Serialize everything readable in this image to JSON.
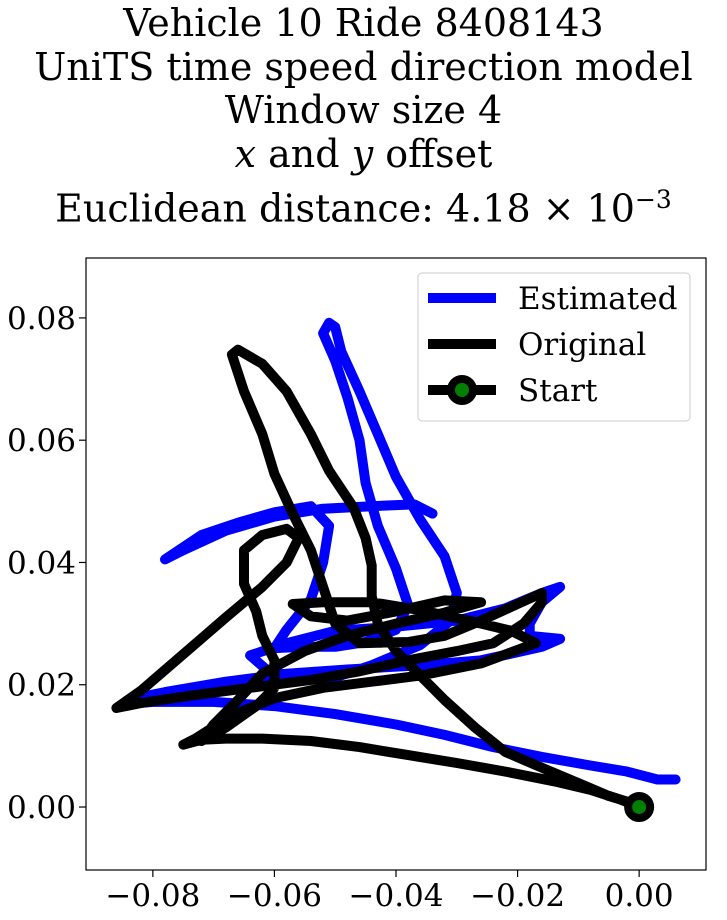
{
  "chart_data": {
    "type": "line",
    "title_lines": [
      "Vehicle 10 Ride 8408143",
      "UniTS time speed direction model",
      "Window size 4",
      "x and y offset",
      "Euclidean distance: 4.18 × 10",
      "−3"
    ],
    "title_italic": {
      "x": "x",
      "and": " and ",
      "y": "y",
      "offset": " offset"
    },
    "xlim": [
      -0.091,
      0.011
    ],
    "ylim": [
      -0.0103,
      0.0898
    ],
    "x_ticks": [
      -0.08,
      -0.06,
      -0.04,
      -0.02,
      0.0
    ],
    "x_tick_labels": [
      "−0.08",
      "−0.06",
      "−0.04",
      "−0.02",
      "0.00"
    ],
    "y_ticks": [
      0.0,
      0.02,
      0.04,
      0.06,
      0.08
    ],
    "y_tick_labels": [
      "0.00",
      "0.02",
      "0.04",
      "0.06",
      "0.08"
    ],
    "legend_position": "top-right",
    "grid": false,
    "series": [
      {
        "name": "Estimated",
        "color": "#0000ff",
        "points": [
          [
            0.006,
            0.0045
          ],
          [
            0.003,
            0.0045
          ],
          [
            -0.002,
            0.0058
          ],
          [
            -0.008,
            0.0068
          ],
          [
            -0.016,
            0.0082
          ],
          [
            -0.024,
            0.0098
          ],
          [
            -0.032,
            0.0118
          ],
          [
            -0.04,
            0.0135
          ],
          [
            -0.05,
            0.0152
          ],
          [
            -0.06,
            0.0165
          ],
          [
            -0.07,
            0.0172
          ],
          [
            -0.08,
            0.0172
          ],
          [
            -0.085,
            0.0168
          ],
          [
            -0.084,
            0.0176
          ],
          [
            -0.078,
            0.0188
          ],
          [
            -0.068,
            0.0205
          ],
          [
            -0.058,
            0.0218
          ],
          [
            -0.048,
            0.0225
          ],
          [
            -0.036,
            0.0232
          ],
          [
            -0.026,
            0.024
          ],
          [
            -0.016,
            0.0262
          ],
          [
            -0.013,
            0.0275
          ],
          [
            -0.018,
            0.028
          ],
          [
            -0.018,
            0.03
          ],
          [
            -0.016,
            0.0335
          ],
          [
            -0.013,
            0.036
          ],
          [
            -0.016,
            0.035
          ],
          [
            -0.022,
            0.0325
          ],
          [
            -0.03,
            0.0305
          ],
          [
            -0.04,
            0.0295
          ],
          [
            -0.05,
            0.0288
          ],
          [
            -0.058,
            0.0268
          ],
          [
            -0.064,
            0.0248
          ],
          [
            -0.061,
            0.0222
          ],
          [
            -0.056,
            0.0212
          ],
          [
            -0.05,
            0.0212
          ],
          [
            -0.044,
            0.0232
          ],
          [
            -0.036,
            0.0265
          ],
          [
            -0.031,
            0.0305
          ],
          [
            -0.03,
            0.035
          ],
          [
            -0.032,
            0.041
          ],
          [
            -0.036,
            0.047
          ],
          [
            -0.04,
            0.054
          ],
          [
            -0.043,
            0.061
          ],
          [
            -0.046,
            0.068
          ],
          [
            -0.049,
            0.0745
          ],
          [
            -0.05,
            0.0785
          ],
          [
            -0.051,
            0.0792
          ],
          [
            -0.052,
            0.0775
          ],
          [
            -0.05,
            0.073
          ],
          [
            -0.048,
            0.067
          ],
          [
            -0.046,
            0.06
          ],
          [
            -0.045,
            0.053
          ],
          [
            -0.043,
            0.046
          ],
          [
            -0.04,
            0.039
          ],
          [
            -0.038,
            0.033
          ],
          [
            -0.04,
            0.029
          ],
          [
            -0.045,
            0.027
          ],
          [
            -0.05,
            0.0262
          ],
          [
            -0.055,
            0.0262
          ],
          [
            -0.06,
            0.026
          ],
          [
            -0.058,
            0.029
          ],
          [
            -0.054,
            0.034
          ],
          [
            -0.052,
            0.04
          ],
          [
            -0.051,
            0.046
          ],
          [
            -0.054,
            0.0492
          ],
          [
            -0.06,
            0.0482
          ],
          [
            -0.066,
            0.0465
          ],
          [
            -0.072,
            0.0445
          ],
          [
            -0.078,
            0.0405
          ],
          [
            -0.075,
            0.042
          ],
          [
            -0.068,
            0.0452
          ],
          [
            -0.06,
            0.0475
          ],
          [
            -0.052,
            0.0488
          ],
          [
            -0.044,
            0.0492
          ],
          [
            -0.037,
            0.0495
          ],
          [
            -0.034,
            0.048
          ]
        ]
      },
      {
        "name": "Original",
        "color": "#000000",
        "points": [
          [
            0.0,
            0.0
          ],
          [
            -0.003,
            0.0012
          ],
          [
            -0.008,
            0.0028
          ],
          [
            -0.014,
            0.0042
          ],
          [
            -0.022,
            0.0058
          ],
          [
            -0.03,
            0.0072
          ],
          [
            -0.038,
            0.0085
          ],
          [
            -0.046,
            0.0098
          ],
          [
            -0.054,
            0.0108
          ],
          [
            -0.062,
            0.0112
          ],
          [
            -0.068,
            0.0112
          ],
          [
            -0.072,
            0.011
          ],
          [
            -0.075,
            0.0102
          ],
          [
            -0.073,
            0.0112
          ],
          [
            -0.067,
            0.015
          ],
          [
            -0.06,
            0.0178
          ],
          [
            -0.052,
            0.0195
          ],
          [
            -0.044,
            0.0205
          ],
          [
            -0.036,
            0.0215
          ],
          [
            -0.026,
            0.0235
          ],
          [
            -0.017,
            0.0268
          ],
          [
            -0.021,
            0.0288
          ],
          [
            -0.028,
            0.0305
          ],
          [
            -0.036,
            0.0322
          ],
          [
            -0.044,
            0.0335
          ],
          [
            -0.052,
            0.0335
          ],
          [
            -0.057,
            0.0332
          ],
          [
            -0.054,
            0.0312
          ],
          [
            -0.048,
            0.0305
          ],
          [
            -0.04,
            0.032
          ],
          [
            -0.032,
            0.0338
          ],
          [
            -0.026,
            0.0335
          ],
          [
            -0.032,
            0.0318
          ],
          [
            -0.04,
            0.03
          ],
          [
            -0.048,
            0.028
          ],
          [
            -0.055,
            0.0255
          ],
          [
            -0.062,
            0.0218
          ],
          [
            -0.066,
            0.0175
          ],
          [
            -0.07,
            0.0135
          ],
          [
            -0.072,
            0.0108
          ],
          [
            -0.068,
            0.013
          ],
          [
            -0.063,
            0.0165
          ],
          [
            -0.06,
            0.0195
          ],
          [
            -0.06,
            0.024
          ],
          [
            -0.062,
            0.028
          ],
          [
            -0.063,
            0.032
          ],
          [
            -0.065,
            0.0365
          ],
          [
            -0.065,
            0.042
          ],
          [
            -0.062,
            0.0445
          ],
          [
            -0.058,
            0.0455
          ],
          [
            -0.056,
            0.044
          ],
          [
            -0.058,
            0.04
          ],
          [
            -0.062,
            0.036
          ],
          [
            -0.068,
            0.031
          ],
          [
            -0.075,
            0.025
          ],
          [
            -0.082,
            0.019
          ],
          [
            -0.086,
            0.0162
          ],
          [
            -0.082,
            0.017
          ],
          [
            -0.074,
            0.0182
          ],
          [
            -0.064,
            0.0195
          ],
          [
            -0.054,
            0.0208
          ],
          [
            -0.046,
            0.0222
          ],
          [
            -0.038,
            0.024
          ],
          [
            -0.03,
            0.0255
          ],
          [
            -0.024,
            0.0268
          ],
          [
            -0.019,
            0.03
          ],
          [
            -0.016,
            0.0335
          ],
          [
            -0.016,
            0.035
          ],
          [
            -0.02,
            0.0332
          ],
          [
            -0.026,
            0.0305
          ],
          [
            -0.032,
            0.028
          ],
          [
            -0.038,
            0.027
          ],
          [
            -0.046,
            0.0268
          ],
          [
            -0.05,
            0.03
          ],
          [
            -0.052,
            0.036
          ],
          [
            -0.054,
            0.042
          ],
          [
            -0.057,
            0.048
          ],
          [
            -0.06,
            0.0545
          ],
          [
            -0.062,
            0.061
          ],
          [
            -0.065,
            0.068
          ],
          [
            -0.067,
            0.074
          ],
          [
            -0.066,
            0.0748
          ],
          [
            -0.062,
            0.0725
          ],
          [
            -0.058,
            0.068
          ],
          [
            -0.054,
            0.061
          ],
          [
            -0.051,
            0.055
          ],
          [
            -0.047,
            0.049
          ],
          [
            -0.045,
            0.044
          ],
          [
            -0.044,
            0.0395
          ],
          [
            -0.044,
            0.0345
          ],
          [
            -0.043,
            0.03
          ],
          [
            -0.04,
            0.0255
          ],
          [
            -0.036,
            0.0215
          ],
          [
            -0.032,
            0.0175
          ],
          [
            -0.027,
            0.013
          ],
          [
            -0.022,
            0.009
          ],
          [
            -0.015,
            0.006
          ],
          [
            -0.009,
            0.0035
          ],
          [
            -0.005,
            0.0018
          ],
          [
            -0.001,
            0.0006
          ],
          [
            0.0,
            0.0
          ]
        ]
      }
    ],
    "start_marker": {
      "name": "Start",
      "x": 0.0,
      "y": 0.0,
      "face_color": "#008000",
      "edge_color": "#000000"
    }
  }
}
